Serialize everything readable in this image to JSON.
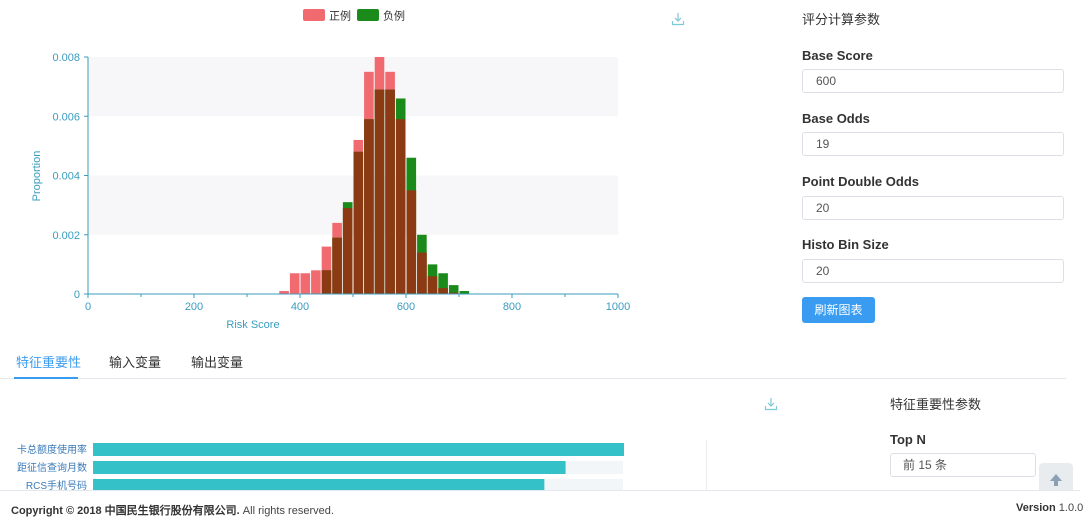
{
  "chart_data": {
    "type": "bar",
    "title": "",
    "xlabel": "Risk Score",
    "ylabel": "Proportion",
    "xlim": [
      0,
      1000
    ],
    "ylim": [
      0,
      0.008
    ],
    "x_ticks": [
      "0",
      "200",
      "400",
      "600",
      "800",
      "1000"
    ],
    "y_ticks": [
      "0",
      "0.002",
      "0.004",
      "0.006",
      "0.008"
    ],
    "bin_size": 20,
    "legend_position": "top-center",
    "grid": "horizontal bands",
    "series": [
      {
        "name": "正例",
        "color": "#f06a6f",
        "bins": [
          360,
          380,
          400,
          420,
          440,
          460,
          480,
          500,
          520,
          540,
          560,
          580,
          600,
          620,
          640,
          660,
          680
        ],
        "values": [
          0.0001,
          0.0007,
          0.0007,
          0.0008,
          0.0016,
          0.0024,
          0.0029,
          0.0052,
          0.0075,
          0.008,
          0.0075,
          0.0059,
          0.0035,
          0.0014,
          0.0006,
          0.0002,
          5e-05
        ]
      },
      {
        "name": "负例",
        "color": "#1a8a1a",
        "bins": [
          440,
          460,
          480,
          500,
          520,
          540,
          560,
          580,
          600,
          620,
          640,
          660,
          680,
          700
        ],
        "values": [
          0.0008,
          0.0019,
          0.0031,
          0.0048,
          0.0059,
          0.0069,
          0.0069,
          0.0066,
          0.0046,
          0.002,
          0.001,
          0.0007,
          0.0003,
          0.0001
        ]
      }
    ],
    "overlap_color": "#8b3a14"
  },
  "params_panel": {
    "title": "评分计算参数",
    "fields": [
      {
        "label": "Base Score",
        "value": "600"
      },
      {
        "label": "Base Odds",
        "value": "19"
      },
      {
        "label": "Point Double Odds",
        "value": "20"
      },
      {
        "label": "Histo Bin Size",
        "value": "20"
      }
    ],
    "refresh_button": "刷新图表"
  },
  "tabs": [
    {
      "label": "特征重要性",
      "active": true
    },
    {
      "label": "输入变量",
      "active": false
    },
    {
      "label": "输出变量",
      "active": false
    }
  ],
  "importance": {
    "features": [
      {
        "name": "卡总额度使用率",
        "importance": 1.0
      },
      {
        "name": "距征信查询月数",
        "importance": 0.89
      },
      {
        "name": "RCS手机号码",
        "importance": 0.85
      }
    ],
    "bar_color": "#34c1c8",
    "params_title": "特征重要性参数",
    "topn_label": "Top N",
    "topn_value": "前 15 条"
  },
  "footer": {
    "copyright_prefix": "Copyright © 2018 中国民生银行股份有限公司.",
    "copyright_suffix": " All rights reserved.",
    "version_label": "Version",
    "version_value": " 1.0.0"
  },
  "icons": {
    "chart_download": "download-icon",
    "importance_download": "download-icon",
    "back_to_top": "arrow-up-icon"
  }
}
